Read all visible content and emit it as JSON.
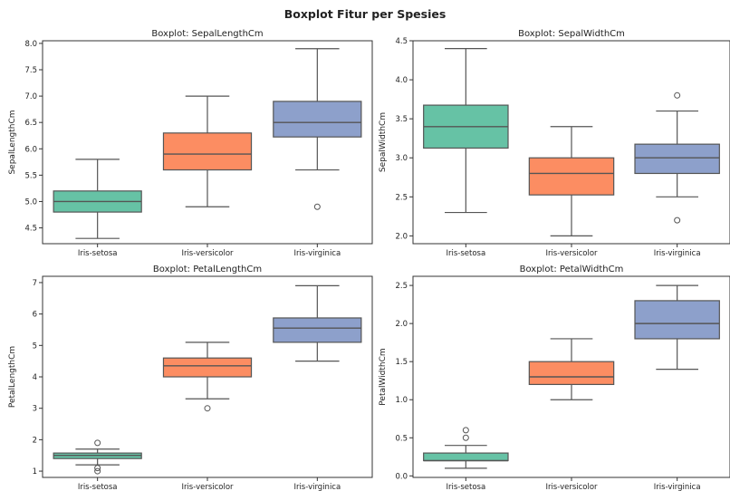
{
  "suptitle": "Boxplot Fitur per Spesies",
  "colors": {
    "Iris-setosa": "#66c2a5",
    "Iris-versicolor": "#fc8d62",
    "Iris-virginica": "#8da0cb",
    "outline": "#555555"
  },
  "chart_data": [
    {
      "type": "boxplot",
      "title": "Boxplot: SepalLengthCm",
      "xlabel": "",
      "ylabel": "SepalLengthCm",
      "categories": [
        "Iris-setosa",
        "Iris-versicolor",
        "Iris-virginica"
      ],
      "ylim": [
        4.2,
        8.05
      ],
      "yticks": [
        4.5,
        5.0,
        5.5,
        6.0,
        6.5,
        7.0,
        7.5,
        8.0
      ],
      "tick_decimals": 1,
      "boxes": [
        {
          "whislo": 4.3,
          "q1": 4.8,
          "med": 5.0,
          "q3": 5.2,
          "whishi": 5.8,
          "fliers": []
        },
        {
          "whislo": 4.9,
          "q1": 5.6,
          "med": 5.9,
          "q3": 6.3,
          "whishi": 7.0,
          "fliers": []
        },
        {
          "whislo": 5.6,
          "q1": 6.225,
          "med": 6.5,
          "q3": 6.9,
          "whishi": 7.9,
          "fliers": [
            4.9
          ]
        }
      ]
    },
    {
      "type": "boxplot",
      "title": "Boxplot: SepalWidthCm",
      "xlabel": "",
      "ylabel": "SepalWidthCm",
      "categories": [
        "Iris-setosa",
        "Iris-versicolor",
        "Iris-virginica"
      ],
      "ylim": [
        1.9,
        4.5
      ],
      "yticks": [
        2.0,
        2.5,
        3.0,
        3.5,
        4.0,
        4.5
      ],
      "tick_decimals": 1,
      "boxes": [
        {
          "whislo": 2.3,
          "q1": 3.125,
          "med": 3.4,
          "q3": 3.675,
          "whishi": 4.4,
          "fliers": []
        },
        {
          "whislo": 2.0,
          "q1": 2.525,
          "med": 2.8,
          "q3": 3.0,
          "whishi": 3.4,
          "fliers": []
        },
        {
          "whislo": 2.5,
          "q1": 2.8,
          "med": 3.0,
          "q3": 3.175,
          "whishi": 3.6,
          "fliers": [
            3.8,
            2.2
          ]
        }
      ]
    },
    {
      "type": "boxplot",
      "title": "Boxplot: PetalLengthCm",
      "xlabel": "",
      "ylabel": "PetalLengthCm",
      "categories": [
        "Iris-setosa",
        "Iris-versicolor",
        "Iris-virginica"
      ],
      "ylim": [
        0.8,
        7.2
      ],
      "yticks": [
        1,
        2,
        3,
        4,
        5,
        6,
        7
      ],
      "tick_decimals": 0,
      "boxes": [
        {
          "whislo": 1.2,
          "q1": 1.4,
          "med": 1.5,
          "q3": 1.575,
          "whishi": 1.7,
          "fliers": [
            1.9,
            1.1,
            1.0
          ]
        },
        {
          "whislo": 3.3,
          "q1": 4.0,
          "med": 4.35,
          "q3": 4.6,
          "whishi": 5.1,
          "fliers": [
            3.0
          ]
        },
        {
          "whislo": 4.5,
          "q1": 5.1,
          "med": 5.55,
          "q3": 5.875,
          "whishi": 6.9,
          "fliers": []
        }
      ]
    },
    {
      "type": "boxplot",
      "title": "Boxplot: PetalWidthCm",
      "xlabel": "",
      "ylabel": "PetalWidthCm",
      "categories": [
        "Iris-setosa",
        "Iris-versicolor",
        "Iris-virginica"
      ],
      "ylim": [
        -0.02,
        2.62
      ],
      "yticks": [
        0.0,
        0.5,
        1.0,
        1.5,
        2.0,
        2.5
      ],
      "tick_decimals": 1,
      "boxes": [
        {
          "whislo": 0.1,
          "q1": 0.2,
          "med": 0.2,
          "q3": 0.3,
          "whishi": 0.4,
          "fliers": [
            0.5,
            0.6
          ]
        },
        {
          "whislo": 1.0,
          "q1": 1.2,
          "med": 1.3,
          "q3": 1.5,
          "whishi": 1.8,
          "fliers": []
        },
        {
          "whislo": 1.4,
          "q1": 1.8,
          "med": 2.0,
          "q3": 2.3,
          "whishi": 2.5,
          "fliers": []
        }
      ]
    }
  ]
}
